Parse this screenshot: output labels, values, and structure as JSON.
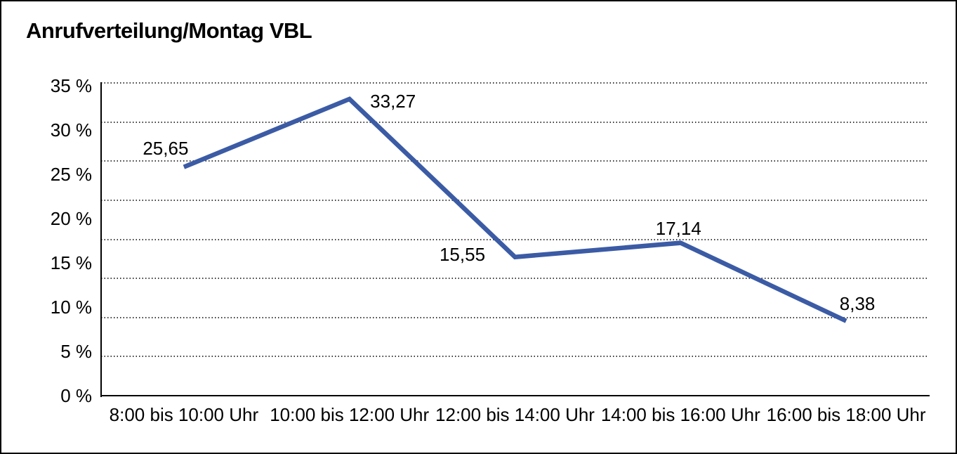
{
  "title": "Anrufverteilung/Montag VBL",
  "colors": {
    "line": "#3B5BA5",
    "axis": "#000000",
    "gridline_dots": "#3c3c3c",
    "text": "#000000",
    "background": "#ffffff",
    "frame_border": "#000000"
  },
  "chart_data": {
    "type": "line",
    "title": "Anrufverteilung/Montag VBL",
    "categories": [
      "8:00 bis 10:00 Uhr",
      "10:00 bis 12:00 Uhr",
      "12:00 bis 14:00 Uhr",
      "14:00 bis 16:00 Uhr",
      "16:00 bis 18:00 Uhr"
    ],
    "values": [
      25.65,
      33.27,
      15.55,
      17.14,
      8.38
    ],
    "value_labels": [
      "25,65",
      "33,27",
      "15,55",
      "17,14",
      "8,38"
    ],
    "y_ticks": [
      "35 %",
      "30 %",
      "25 %",
      "20 %",
      "15 %",
      "10 %",
      "5 %",
      "0 %"
    ],
    "y_tick_values": [
      35,
      30,
      25,
      20,
      15,
      10,
      5,
      0
    ],
    "ylim": [
      0,
      35
    ],
    "xlabel": "",
    "ylabel": "",
    "grid": "horizontal-dotted",
    "legend_position": "none",
    "series_color": "#3B5BA5"
  }
}
